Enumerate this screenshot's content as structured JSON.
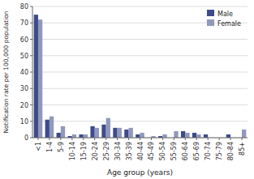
{
  "chart_data": {
    "type": "bar",
    "xlabel": "Age group (years)",
    "ylabel": "Notification rate per 100,000 population",
    "categories": [
      "<1",
      "1-4",
      "5-9",
      "10-14",
      "15-19",
      "20-24",
      "25-29",
      "30-34",
      "35-39",
      "40-44",
      "45-49",
      "50-54",
      "55-59",
      "60-64",
      "65-69",
      "70-74",
      "75-79",
      "80-84",
      "85+"
    ],
    "series": [
      {
        "name": "Male",
        "color": "#3d4b8a",
        "values": [
          75,
          11,
          3,
          1,
          2,
          7,
          8,
          6,
          5,
          2,
          0,
          1,
          0,
          4,
          3,
          2,
          0,
          2,
          0
        ]
      },
      {
        "name": "Female",
        "color": "#9099bb",
        "values": [
          72,
          13,
          7,
          2,
          2,
          6,
          12,
          6,
          6,
          3,
          1,
          2,
          4,
          3,
          2,
          0,
          0,
          0,
          5
        ]
      }
    ],
    "ylim": [
      0,
      80
    ],
    "yticks": [
      0,
      10,
      20,
      30,
      40,
      50,
      60,
      70,
      80
    ],
    "grid": true,
    "legend": "upper right"
  }
}
